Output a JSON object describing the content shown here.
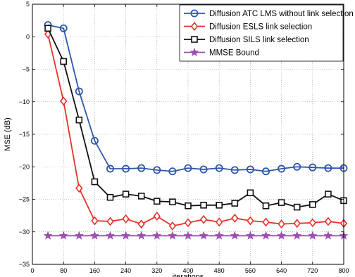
{
  "chart_data": {
    "type": "line",
    "xlabel": "iterations",
    "ylabel": "MSE (dB)",
    "xlim": [
      0,
      800
    ],
    "ylim": [
      -35,
      5
    ],
    "xticks": [
      0,
      80,
      160,
      240,
      320,
      400,
      480,
      560,
      640,
      720,
      800
    ],
    "yticks": [
      5,
      0,
      -5,
      -10,
      -15,
      -20,
      -25,
      -30,
      -35
    ],
    "xtick_labels": [
      "0",
      "80",
      "160",
      "240",
      "320",
      "400",
      "480",
      "560",
      "640",
      "720",
      "800"
    ],
    "ytick_labels": [
      "5",
      "0",
      "−5",
      "−10",
      "−15",
      "−20",
      "−25",
      "−30",
      "−35"
    ],
    "grid": true,
    "legend_position": "top-right",
    "x": [
      40,
      80,
      120,
      160,
      200,
      240,
      280,
      320,
      360,
      400,
      440,
      480,
      520,
      560,
      600,
      640,
      680,
      720,
      760,
      800
    ],
    "series": [
      {
        "name": "Diffusion ATC LMS without link selection",
        "color": "#2e56a8",
        "marker": "circle",
        "values": [
          1.8,
          1.3,
          -8.4,
          -16.0,
          -20.3,
          -20.3,
          -20.2,
          -20.5,
          -20.7,
          -20.2,
          -20.4,
          -20.2,
          -20.5,
          -20.4,
          -20.7,
          -20.3,
          -20.0,
          -20.1,
          -20.2,
          -20.2
        ]
      },
      {
        "name": "Diffusion ESLS link selection",
        "color": "#e8312a",
        "marker": "diamond",
        "values": [
          0.4,
          -9.9,
          -23.3,
          -28.3,
          -28.4,
          -28.0,
          -28.8,
          -27.6,
          -29.1,
          -28.6,
          -28.1,
          -28.5,
          -27.9,
          -28.3,
          -28.5,
          -28.8,
          -28.7,
          -28.6,
          -28.4,
          -28.7
        ]
      },
      {
        "name": "Diffusion SILS link selection",
        "color": "#111111",
        "marker": "square",
        "values": [
          1.3,
          -3.8,
          -12.8,
          -22.3,
          -24.7,
          -24.2,
          -24.5,
          -25.3,
          -25.4,
          -26.0,
          -25.9,
          -25.9,
          -25.6,
          -24.0,
          -26.0,
          -25.5,
          -26.2,
          -25.8,
          -24.2,
          -25.2
        ]
      },
      {
        "name": "MMSE Bound",
        "color": "#9b4fb0",
        "marker": "star",
        "values": [
          -30.6,
          -30.6,
          -30.6,
          -30.6,
          -30.6,
          -30.6,
          -30.6,
          -30.6,
          -30.6,
          -30.6,
          -30.6,
          -30.6,
          -30.6,
          -30.6,
          -30.6,
          -30.6,
          -30.6,
          -30.6,
          -30.6,
          -30.6
        ]
      }
    ]
  }
}
